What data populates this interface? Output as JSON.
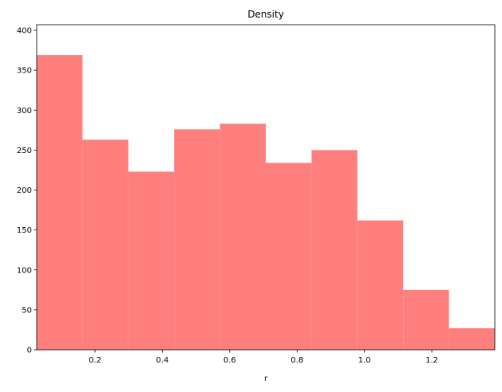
{
  "chart_data": {
    "type": "histogram",
    "title": "Density",
    "x_label": "r",
    "bins": [
      0.027,
      0.163,
      0.299,
      0.435,
      0.571,
      0.707,
      0.843,
      0.979,
      1.115,
      1.251,
      1.387
    ],
    "values": [
      369,
      263,
      223,
      276,
      283,
      234,
      250,
      162,
      75,
      27
    ],
    "color": "#ff7f7f",
    "xlim": [
      0.027,
      1.387
    ],
    "ylim": [
      0,
      407
    ],
    "xticks": [
      0.2,
      0.4,
      0.6,
      0.8,
      {
        "value": 1.0,
        "label": "1.0"
      },
      1.2
    ],
    "yticks": [
      0,
      50,
      100,
      150,
      200,
      250,
      300,
      350,
      400
    ]
  }
}
